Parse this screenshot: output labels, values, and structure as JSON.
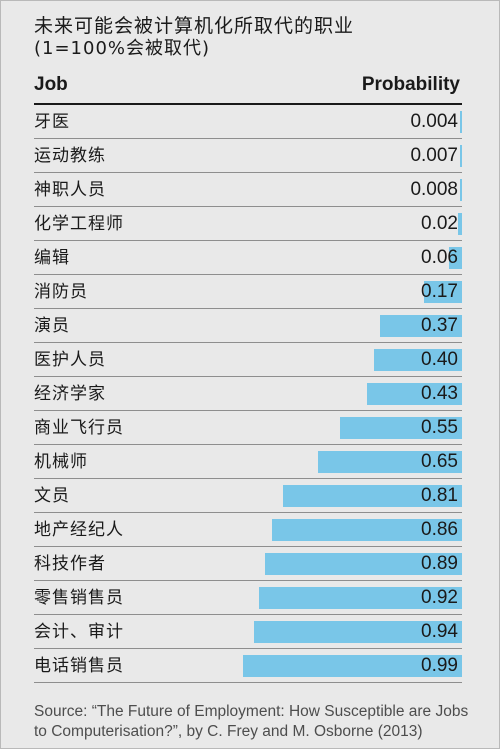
{
  "title": "未来可能会被计算机化所取代的职业",
  "subtitle": "(1=100%会被取代)",
  "columns": {
    "job": "Job",
    "probability": "Probability"
  },
  "colors": {
    "bar": "#79c6e8",
    "background": "#e9e9e9",
    "rule": "#8e8e8e"
  },
  "chart_data": {
    "type": "bar",
    "orientation": "horizontal",
    "title": "未来可能会被计算机化所取代的职业",
    "subtitle": "(1=100%会被取代)",
    "xlim": [
      0,
      1
    ],
    "categories": [
      "牙医",
      "运动教练",
      "神职人员",
      "化学工程师",
      "编辑",
      "消防员",
      "演员",
      "医护人员",
      "经济学家",
      "商业飞行员",
      "机械师",
      "文员",
      "地产经纪人",
      "科技作者",
      "零售销售员",
      "会计、审计",
      "电话销售员"
    ],
    "values": [
      0.004,
      0.007,
      0.008,
      0.02,
      0.06,
      0.17,
      0.37,
      0.4,
      0.43,
      0.55,
      0.65,
      0.81,
      0.86,
      0.89,
      0.92,
      0.94,
      0.99
    ],
    "value_labels": [
      "0.004",
      "0.007",
      "0.008",
      "0.02",
      "0.06",
      "0.17",
      "0.37",
      "0.40",
      "0.43",
      "0.55",
      "0.65",
      "0.81",
      "0.86",
      "0.89",
      "0.92",
      "0.94",
      "0.99"
    ]
  },
  "source": {
    "line1": "Source: “The Future of Employment: How Susceptible are Jobs",
    "line2": "to Computerisation?”, by C. Frey and M. Osborne (2013)"
  }
}
